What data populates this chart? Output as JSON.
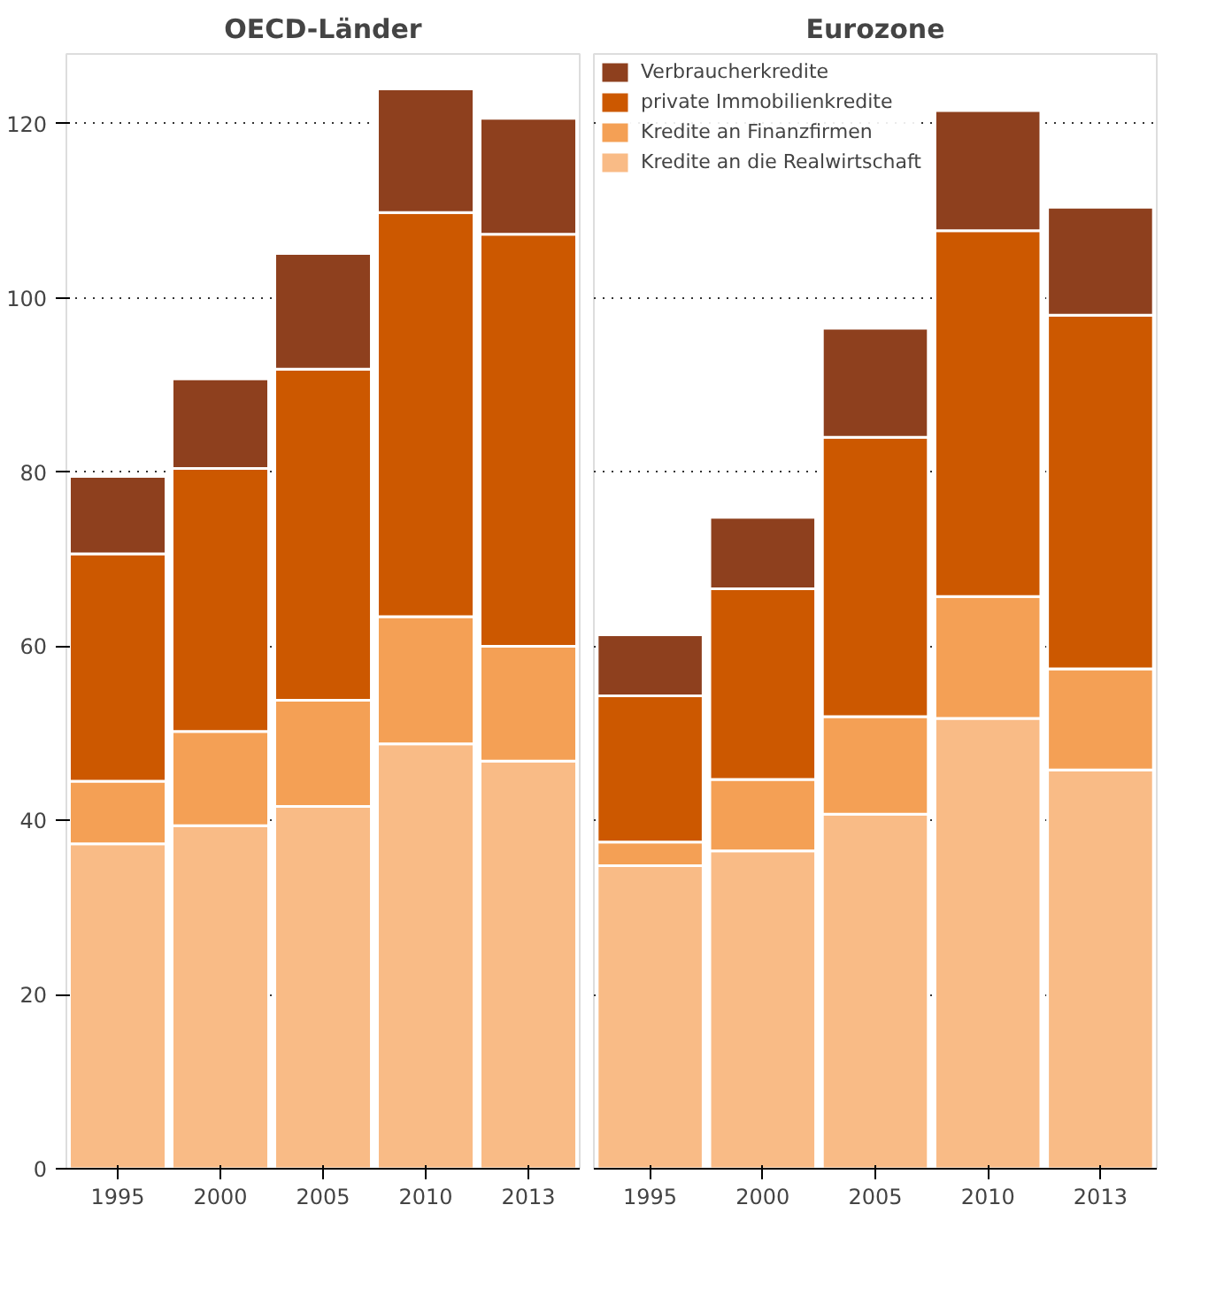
{
  "chart_data": [
    {
      "type": "bar",
      "title": "OECD-Länder",
      "categories": [
        "1995",
        "2000",
        "2005",
        "2010",
        "2013"
      ],
      "stacked": true,
      "ylim": [
        0,
        128
      ],
      "yticks": [
        0,
        20,
        40,
        60,
        80,
        100,
        120
      ],
      "grid": "y",
      "series": [
        {
          "color": "#f9bb86",
          "values": [
            37.3,
            39.4,
            41.6,
            48.8,
            46.8
          ]
        },
        {
          "color": "#f4a055",
          "values": [
            7.2,
            10.8,
            12.2,
            14.6,
            13.2
          ]
        },
        {
          "color": "#cc5800",
          "values": [
            26.1,
            30.2,
            38.0,
            46.4,
            47.3
          ]
        },
        {
          "color": "#8e401e",
          "values": [
            8.9,
            10.3,
            13.3,
            14.2,
            13.3
          ]
        }
      ]
    },
    {
      "type": "bar",
      "title": "Eurozone",
      "categories": [
        "1995",
        "2000",
        "2005",
        "2010",
        "2013"
      ],
      "stacked": true,
      "ylim": [
        0,
        128
      ],
      "yticks": [
        0,
        20,
        40,
        60,
        80,
        100,
        120
      ],
      "grid": "y",
      "legend": "top left",
      "tick_labels": "x",
      "series": [
        {
          "name": "Kredite an die Realwirtschaft",
          "color": "#f9bb86",
          "values": [
            34.8,
            36.5,
            40.7,
            51.7,
            45.8
          ]
        },
        {
          "name": "Kredite an Finanzfirmen",
          "color": "#f4a055",
          "values": [
            2.7,
            8.2,
            11.2,
            14.0,
            11.6
          ]
        },
        {
          "name": "private Immobilienkredite",
          "color": "#cc5800",
          "values": [
            16.8,
            21.9,
            32.1,
            42.0,
            40.6
          ]
        },
        {
          "name": "Verbraucherkredite",
          "color": "#8e401e",
          "values": [
            7.0,
            8.2,
            12.5,
            13.8,
            12.4
          ]
        }
      ]
    }
  ]
}
